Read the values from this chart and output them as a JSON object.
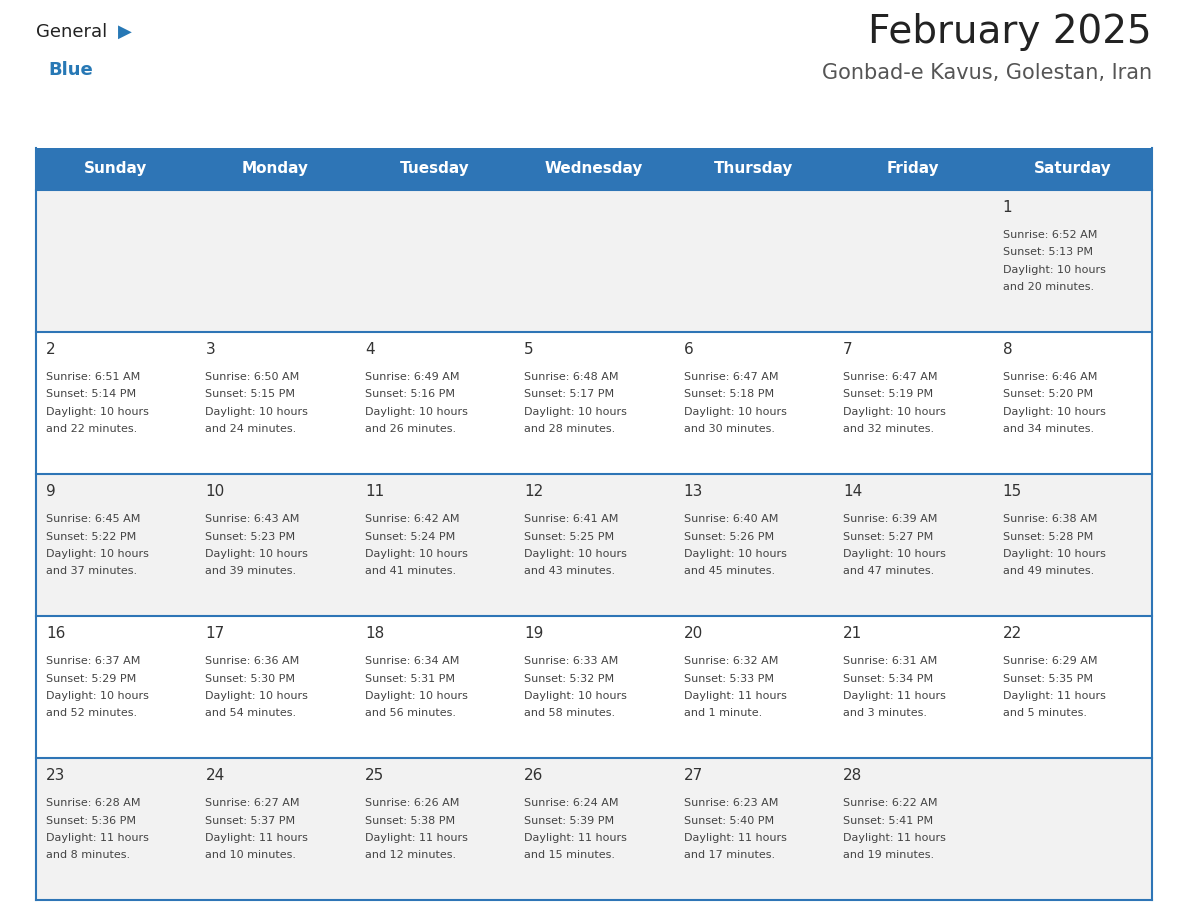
{
  "title": "February 2025",
  "subtitle": "Gonbad-e Kavus, Golestan, Iran",
  "days_of_week": [
    "Sunday",
    "Monday",
    "Tuesday",
    "Wednesday",
    "Thursday",
    "Friday",
    "Saturday"
  ],
  "header_bg": "#2E75B6",
  "header_text": "#FFFFFF",
  "cell_bg_odd": "#F2F2F2",
  "cell_bg_even": "#FFFFFF",
  "day_num_color": "#333333",
  "cell_text_color": "#444444",
  "divider_color": "#2E75B6",
  "title_color": "#222222",
  "subtitle_color": "#555555",
  "logo_general_color": "#222222",
  "logo_blue_color": "#2778B5",
  "calendar_data": [
    {
      "day": 1,
      "col": 6,
      "row": 0,
      "sunrise": "6:52 AM",
      "sunset": "5:13 PM",
      "dl_line1": "Daylight: 10 hours",
      "dl_line2": "and 20 minutes."
    },
    {
      "day": 2,
      "col": 0,
      "row": 1,
      "sunrise": "6:51 AM",
      "sunset": "5:14 PM",
      "dl_line1": "Daylight: 10 hours",
      "dl_line2": "and 22 minutes."
    },
    {
      "day": 3,
      "col": 1,
      "row": 1,
      "sunrise": "6:50 AM",
      "sunset": "5:15 PM",
      "dl_line1": "Daylight: 10 hours",
      "dl_line2": "and 24 minutes."
    },
    {
      "day": 4,
      "col": 2,
      "row": 1,
      "sunrise": "6:49 AM",
      "sunset": "5:16 PM",
      "dl_line1": "Daylight: 10 hours",
      "dl_line2": "and 26 minutes."
    },
    {
      "day": 5,
      "col": 3,
      "row": 1,
      "sunrise": "6:48 AM",
      "sunset": "5:17 PM",
      "dl_line1": "Daylight: 10 hours",
      "dl_line2": "and 28 minutes."
    },
    {
      "day": 6,
      "col": 4,
      "row": 1,
      "sunrise": "6:47 AM",
      "sunset": "5:18 PM",
      "dl_line1": "Daylight: 10 hours",
      "dl_line2": "and 30 minutes."
    },
    {
      "day": 7,
      "col": 5,
      "row": 1,
      "sunrise": "6:47 AM",
      "sunset": "5:19 PM",
      "dl_line1": "Daylight: 10 hours",
      "dl_line2": "and 32 minutes."
    },
    {
      "day": 8,
      "col": 6,
      "row": 1,
      "sunrise": "6:46 AM",
      "sunset": "5:20 PM",
      "dl_line1": "Daylight: 10 hours",
      "dl_line2": "and 34 minutes."
    },
    {
      "day": 9,
      "col": 0,
      "row": 2,
      "sunrise": "6:45 AM",
      "sunset": "5:22 PM",
      "dl_line1": "Daylight: 10 hours",
      "dl_line2": "and 37 minutes."
    },
    {
      "day": 10,
      "col": 1,
      "row": 2,
      "sunrise": "6:43 AM",
      "sunset": "5:23 PM",
      "dl_line1": "Daylight: 10 hours",
      "dl_line2": "and 39 minutes."
    },
    {
      "day": 11,
      "col": 2,
      "row": 2,
      "sunrise": "6:42 AM",
      "sunset": "5:24 PM",
      "dl_line1": "Daylight: 10 hours",
      "dl_line2": "and 41 minutes."
    },
    {
      "day": 12,
      "col": 3,
      "row": 2,
      "sunrise": "6:41 AM",
      "sunset": "5:25 PM",
      "dl_line1": "Daylight: 10 hours",
      "dl_line2": "and 43 minutes."
    },
    {
      "day": 13,
      "col": 4,
      "row": 2,
      "sunrise": "6:40 AM",
      "sunset": "5:26 PM",
      "dl_line1": "Daylight: 10 hours",
      "dl_line2": "and 45 minutes."
    },
    {
      "day": 14,
      "col": 5,
      "row": 2,
      "sunrise": "6:39 AM",
      "sunset": "5:27 PM",
      "dl_line1": "Daylight: 10 hours",
      "dl_line2": "and 47 minutes."
    },
    {
      "day": 15,
      "col": 6,
      "row": 2,
      "sunrise": "6:38 AM",
      "sunset": "5:28 PM",
      "dl_line1": "Daylight: 10 hours",
      "dl_line2": "and 49 minutes."
    },
    {
      "day": 16,
      "col": 0,
      "row": 3,
      "sunrise": "6:37 AM",
      "sunset": "5:29 PM",
      "dl_line1": "Daylight: 10 hours",
      "dl_line2": "and 52 minutes."
    },
    {
      "day": 17,
      "col": 1,
      "row": 3,
      "sunrise": "6:36 AM",
      "sunset": "5:30 PM",
      "dl_line1": "Daylight: 10 hours",
      "dl_line2": "and 54 minutes."
    },
    {
      "day": 18,
      "col": 2,
      "row": 3,
      "sunrise": "6:34 AM",
      "sunset": "5:31 PM",
      "dl_line1": "Daylight: 10 hours",
      "dl_line2": "and 56 minutes."
    },
    {
      "day": 19,
      "col": 3,
      "row": 3,
      "sunrise": "6:33 AM",
      "sunset": "5:32 PM",
      "dl_line1": "Daylight: 10 hours",
      "dl_line2": "and 58 minutes."
    },
    {
      "day": 20,
      "col": 4,
      "row": 3,
      "sunrise": "6:32 AM",
      "sunset": "5:33 PM",
      "dl_line1": "Daylight: 11 hours",
      "dl_line2": "and 1 minute."
    },
    {
      "day": 21,
      "col": 5,
      "row": 3,
      "sunrise": "6:31 AM",
      "sunset": "5:34 PM",
      "dl_line1": "Daylight: 11 hours",
      "dl_line2": "and 3 minutes."
    },
    {
      "day": 22,
      "col": 6,
      "row": 3,
      "sunrise": "6:29 AM",
      "sunset": "5:35 PM",
      "dl_line1": "Daylight: 11 hours",
      "dl_line2": "and 5 minutes."
    },
    {
      "day": 23,
      "col": 0,
      "row": 4,
      "sunrise": "6:28 AM",
      "sunset": "5:36 PM",
      "dl_line1": "Daylight: 11 hours",
      "dl_line2": "and 8 minutes."
    },
    {
      "day": 24,
      "col": 1,
      "row": 4,
      "sunrise": "6:27 AM",
      "sunset": "5:37 PM",
      "dl_line1": "Daylight: 11 hours",
      "dl_line2": "and 10 minutes."
    },
    {
      "day": 25,
      "col": 2,
      "row": 4,
      "sunrise": "6:26 AM",
      "sunset": "5:38 PM",
      "dl_line1": "Daylight: 11 hours",
      "dl_line2": "and 12 minutes."
    },
    {
      "day": 26,
      "col": 3,
      "row": 4,
      "sunrise": "6:24 AM",
      "sunset": "5:39 PM",
      "dl_line1": "Daylight: 11 hours",
      "dl_line2": "and 15 minutes."
    },
    {
      "day": 27,
      "col": 4,
      "row": 4,
      "sunrise": "6:23 AM",
      "sunset": "5:40 PM",
      "dl_line1": "Daylight: 11 hours",
      "dl_line2": "and 17 minutes."
    },
    {
      "day": 28,
      "col": 5,
      "row": 4,
      "sunrise": "6:22 AM",
      "sunset": "5:41 PM",
      "dl_line1": "Daylight: 11 hours",
      "dl_line2": "and 19 minutes."
    }
  ],
  "num_rows": 5,
  "num_cols": 7
}
